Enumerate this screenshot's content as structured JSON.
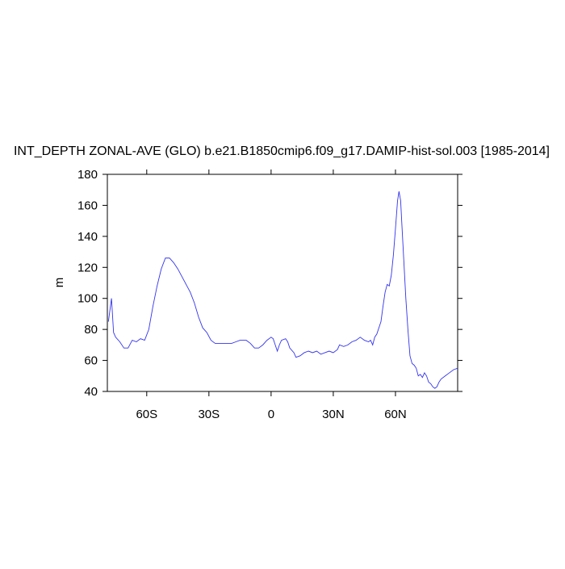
{
  "chart_data": {
    "type": "line",
    "title": "INT_DEPTH ZONAL-AVE (GLO) b.e21.B1850cmip6.f09_g17.DAMIP-hist-sol.003 [1985-2014]",
    "ylabel": "m",
    "x": [
      -78.5,
      -77,
      -76,
      -75,
      -73,
      -71,
      -69,
      -67,
      -65,
      -63,
      -61,
      -59,
      -57,
      -55,
      -53,
      -51,
      -49,
      -47,
      -45,
      -43,
      -41,
      -39,
      -37,
      -35,
      -33,
      -31,
      -29,
      -27,
      -25,
      -22,
      -19,
      -17,
      -15,
      -12,
      -10,
      -8,
      -6,
      -4,
      -2,
      0,
      1,
      2,
      3,
      4,
      5,
      7,
      8,
      9,
      11,
      12,
      14,
      16,
      18,
      20,
      22,
      24,
      26,
      28,
      30,
      32,
      33,
      35,
      37,
      39,
      41,
      43,
      45,
      47,
      48,
      49,
      50,
      51,
      53,
      54,
      55,
      56,
      57,
      58,
      59,
      60,
      61,
      61.7,
      62.5,
      63,
      64,
      65,
      66,
      67,
      68,
      69,
      70,
      71,
      72,
      73,
      74,
      75,
      76,
      77,
      78,
      79,
      80,
      81,
      82,
      84,
      86,
      88,
      90
    ],
    "series": [
      {
        "name": "INT_DEPTH",
        "color": "#3333ee",
        "values": [
          85,
          100,
          78,
          75,
          72,
          68,
          68,
          73,
          72,
          74,
          73,
          80,
          95,
          108,
          119,
          126,
          126,
          123,
          119,
          114,
          109,
          104,
          97,
          88,
          81,
          78,
          73,
          71,
          71,
          71,
          71,
          72,
          73,
          73,
          71,
          68,
          68,
          70,
          73,
          75,
          74,
          70,
          66,
          70,
          73,
          74,
          72,
          68,
          65,
          62,
          63,
          65,
          66,
          65,
          66,
          64,
          65,
          66,
          65,
          67,
          70,
          69,
          70,
          72,
          73,
          75,
          73,
          72,
          73,
          70,
          75,
          77,
          85,
          95,
          104,
          109,
          108,
          115,
          128,
          145,
          163,
          169,
          163,
          150,
          125,
          100,
          80,
          63,
          58,
          57,
          55,
          50,
          51,
          49,
          52,
          50,
          46,
          45,
          43,
          42,
          43,
          46,
          48,
          50,
          52,
          54,
          55
        ]
      }
    ],
    "xlim": [
      -79,
      90
    ],
    "xticks": [
      {
        "value": -60,
        "label": "60S"
      },
      {
        "value": -30,
        "label": "30S"
      },
      0,
      {
        "value": 30,
        "label": "30N"
      },
      {
        "value": 60,
        "label": "60N"
      }
    ],
    "ylim": [
      40,
      180
    ],
    "yticks": [
      40,
      60,
      80,
      100,
      120,
      140,
      160,
      180
    ]
  }
}
